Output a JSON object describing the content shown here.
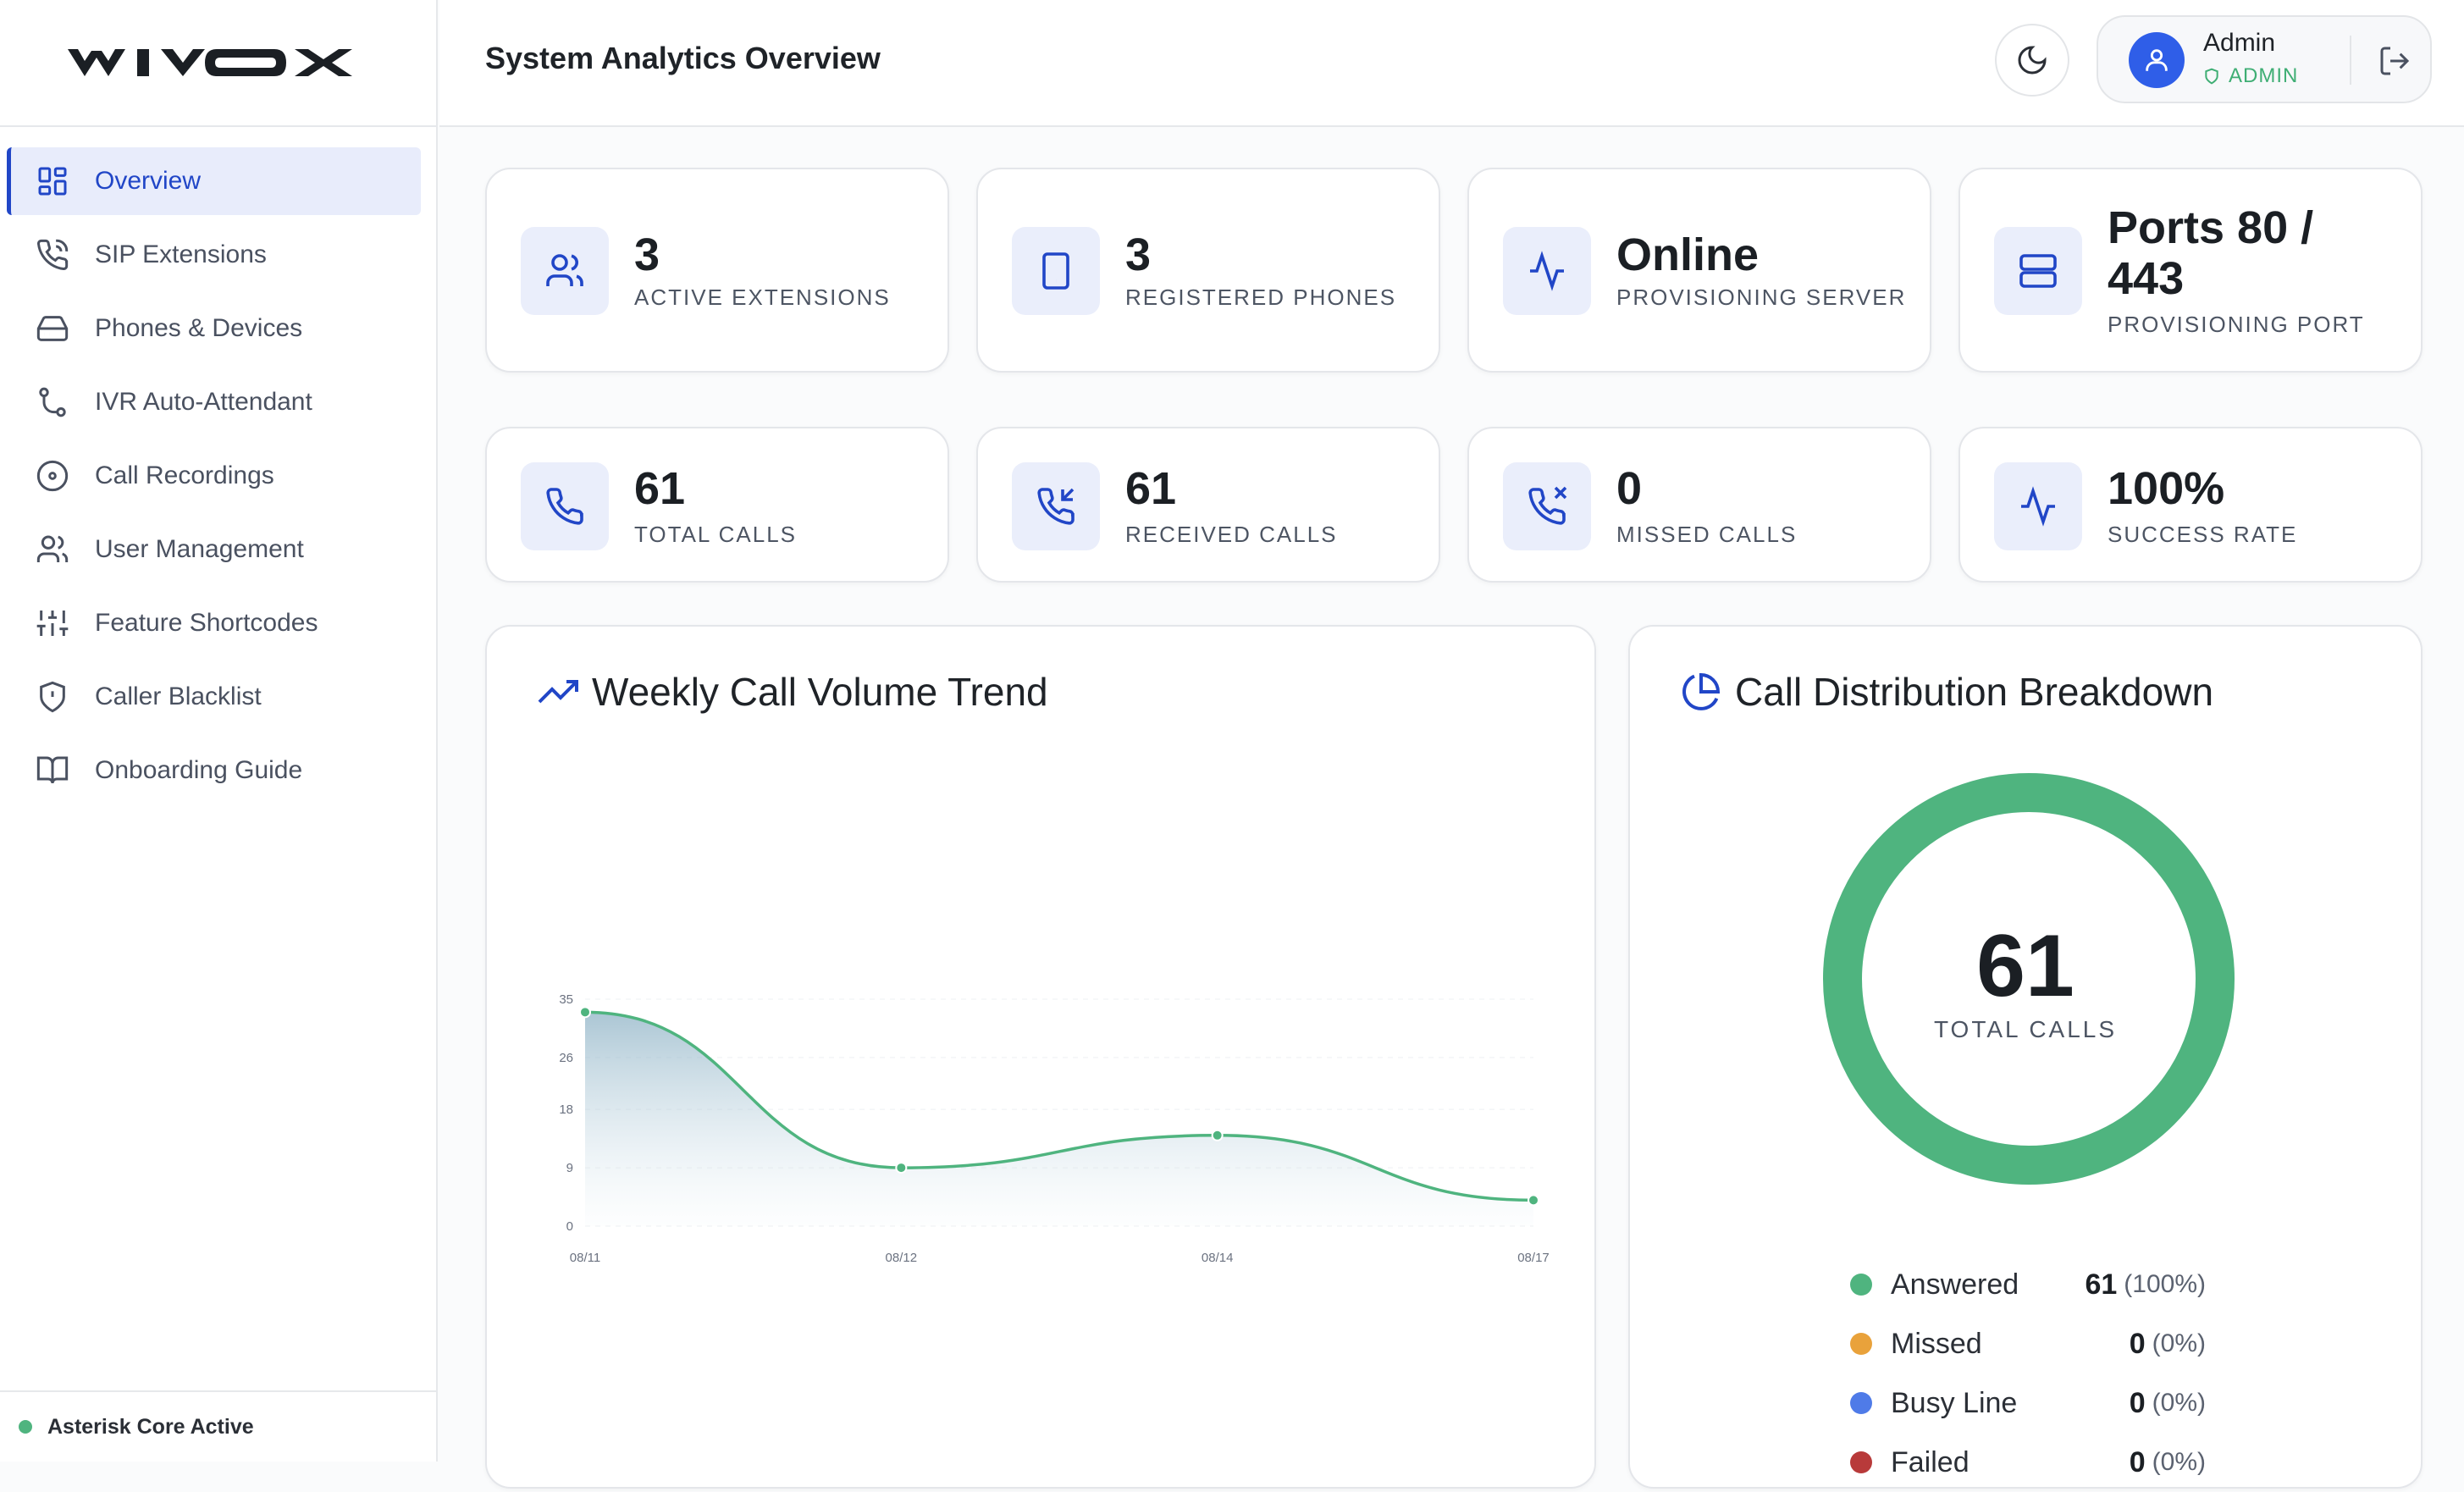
{
  "brand": {
    "logo_text": "WIVOX"
  },
  "sidebar": {
    "items": [
      {
        "label": "Overview",
        "icon": "layout-grid-icon",
        "active": true
      },
      {
        "label": "SIP Extensions",
        "icon": "phone-call-icon"
      },
      {
        "label": "Phones & Devices",
        "icon": "hard-drive-icon"
      },
      {
        "label": "IVR Auto-Attendant",
        "icon": "git-branch-icon"
      },
      {
        "label": "Call Recordings",
        "icon": "disc-icon"
      },
      {
        "label": "User Management",
        "icon": "users-icon"
      },
      {
        "label": "Feature Shortcodes",
        "icon": "sliders-icon"
      },
      {
        "label": "Caller Blacklist",
        "icon": "shield-alert-icon"
      },
      {
        "label": "Onboarding Guide",
        "icon": "book-open-icon"
      }
    ],
    "footer_status": "Asterisk Core Active"
  },
  "header": {
    "title": "System Analytics Overview",
    "user": {
      "name": "Admin",
      "role": "ADMIN"
    }
  },
  "stats_row1": [
    {
      "value": "3",
      "label": "ACTIVE EXTENSIONS",
      "icon": "users-icon"
    },
    {
      "value": "3",
      "label": "REGISTERED PHONES",
      "icon": "tablet-icon"
    },
    {
      "value": "Online",
      "label": "PROVISIONING SERVER",
      "icon": "activity-icon"
    },
    {
      "value_line1": "Ports 80 /",
      "value_line2": "443",
      "label": "PROVISIONING PORT",
      "icon": "server-icon"
    }
  ],
  "stats_row2": [
    {
      "value": "61",
      "label": "TOTAL CALLS",
      "icon": "phone-icon"
    },
    {
      "value": "61",
      "label": "RECEIVED CALLS",
      "icon": "phone-incoming-icon"
    },
    {
      "value": "0",
      "label": "MISSED CALLS",
      "icon": "phone-missed-icon"
    },
    {
      "value": "100%",
      "label": "SUCCESS RATE",
      "icon": "activity-icon"
    }
  ],
  "trend": {
    "title": "Weekly Call Volume Trend",
    "chart_data": {
      "type": "area",
      "categories": [
        "08/11",
        "08/12",
        "08/14",
        "08/17"
      ],
      "values": [
        33,
        9,
        14,
        4
      ],
      "yticks": [
        "0",
        "9",
        "18",
        "26",
        "35"
      ],
      "ylim": [
        0,
        35
      ],
      "grid": true,
      "color": "#4fb47f"
    }
  },
  "distribution": {
    "title": "Call Distribution Breakdown",
    "total_value": "61",
    "total_label": "TOTAL CALLS",
    "legend": [
      {
        "name": "Answered",
        "value": "61",
        "pct": "(100%)",
        "color": "#4fb47f"
      },
      {
        "name": "Missed",
        "value": "0",
        "pct": "(0%)",
        "color": "#e9a23b"
      },
      {
        "name": "Busy Line",
        "value": "0",
        "pct": "(0%)",
        "color": "#4f7be8"
      },
      {
        "name": "Failed",
        "value": "0",
        "pct": "(0%)",
        "color": "#b83a3a"
      }
    ],
    "chart_data": {
      "type": "pie",
      "categories": [
        "Answered",
        "Missed",
        "Busy Line",
        "Failed"
      ],
      "values": [
        61,
        0,
        0,
        0
      ]
    }
  }
}
